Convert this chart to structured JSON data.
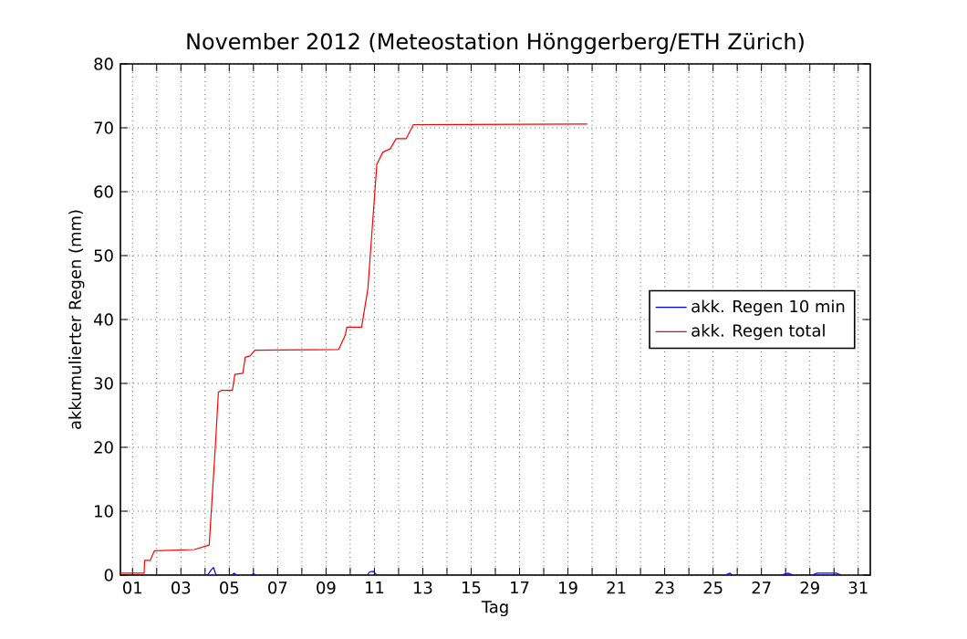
{
  "chart_data": {
    "type": "line",
    "title": "November 2012  (Meteostation Hönggerberg/ETH Zürich)",
    "xlabel": "Tag",
    "ylabel": "akkumulierter Regen (mm)",
    "xlim": [
      0.5,
      31.5
    ],
    "ylim": [
      0,
      80
    ],
    "xticks": [
      {
        "value": 1,
        "label": "01"
      },
      {
        "value": 2,
        "label": null
      },
      {
        "value": 3,
        "label": "03"
      },
      {
        "value": 4,
        "label": null
      },
      {
        "value": 5,
        "label": "05"
      },
      {
        "value": 6,
        "label": null
      },
      {
        "value": 7,
        "label": "07"
      },
      {
        "value": 8,
        "label": null
      },
      {
        "value": 9,
        "label": "09"
      },
      {
        "value": 10,
        "label": null
      },
      {
        "value": 11,
        "label": "11"
      },
      {
        "value": 12,
        "label": null
      },
      {
        "value": 13,
        "label": "13"
      },
      {
        "value": 14,
        "label": null
      },
      {
        "value": 15,
        "label": "15"
      },
      {
        "value": 16,
        "label": null
      },
      {
        "value": 17,
        "label": "17"
      },
      {
        "value": 18,
        "label": null
      },
      {
        "value": 19,
        "label": "19"
      },
      {
        "value": 20,
        "label": null
      },
      {
        "value": 21,
        "label": "21"
      },
      {
        "value": 22,
        "label": null
      },
      {
        "value": 23,
        "label": "23"
      },
      {
        "value": 24,
        "label": null
      },
      {
        "value": 25,
        "label": "25"
      },
      {
        "value": 26,
        "label": null
      },
      {
        "value": 27,
        "label": "27"
      },
      {
        "value": 28,
        "label": null
      },
      {
        "value": 29,
        "label": "29"
      },
      {
        "value": 30,
        "label": null
      },
      {
        "value": 31,
        "label": "31"
      }
    ],
    "yticks": [
      0,
      10,
      20,
      30,
      40,
      50,
      60,
      70,
      80
    ],
    "grid": true,
    "legend": "right",
    "series": [
      {
        "name": "akk. Regen 10 min",
        "color": "#0000ff",
        "x": [
          0.5,
          4.1,
          4.25,
          4.35,
          4.45,
          5.1,
          5.2,
          5.3,
          5.9,
          6.0,
          6.1,
          10.7,
          10.8,
          10.95,
          11.1,
          25.5,
          25.7,
          25.8,
          27.8,
          28.1,
          28.3,
          29.1,
          29.3,
          30.1,
          30.3
        ],
        "values": [
          0,
          0,
          0.8,
          1.2,
          0,
          0,
          0.3,
          0,
          0,
          0.2,
          0,
          0,
          0.5,
          0.6,
          0,
          0,
          0.3,
          0,
          0,
          0.3,
          0,
          0,
          0.3,
          0.3,
          0
        ]
      },
      {
        "name": "akk. Regen total",
        "color": "#ff0000",
        "x": [
          0.5,
          1.48,
          1.5,
          1.73,
          1.9,
          3.55,
          4.17,
          4.43,
          4.55,
          4.67,
          5.13,
          5.23,
          5.56,
          5.66,
          5.86,
          6.06,
          9.52,
          9.8,
          9.86,
          10.47,
          10.73,
          11.1,
          11.35,
          11.65,
          11.9,
          12.31,
          12.61,
          19.8
        ],
        "values": [
          0.3,
          0.3,
          2.3,
          2.3,
          3.8,
          4.0,
          4.7,
          20.5,
          28.6,
          28.9,
          28.9,
          31.4,
          31.6,
          34.1,
          34.3,
          35.2,
          35.3,
          37.6,
          38.8,
          38.8,
          44.8,
          64.3,
          66.2,
          66.7,
          68.3,
          68.3,
          70.5,
          70.6
        ]
      }
    ]
  }
}
